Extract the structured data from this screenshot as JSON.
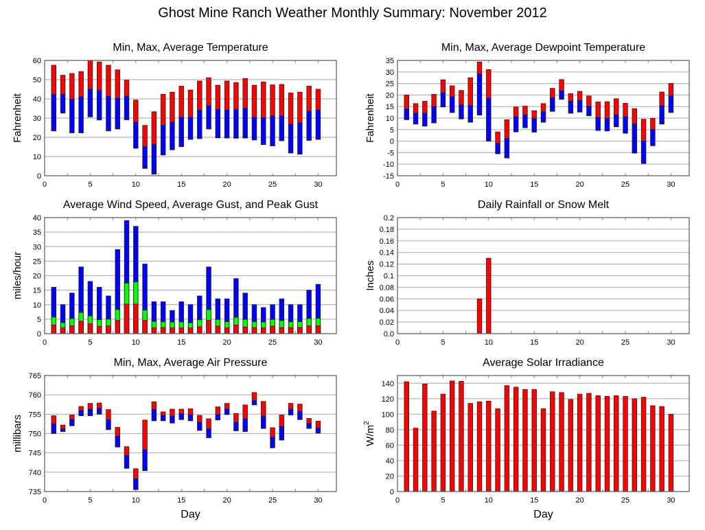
{
  "title": "Ghost Mine Ranch Weather Monthly Summary: November 2012",
  "colors": {
    "red": "#ff0000",
    "blue": "#0000ff",
    "green": "#00ff00",
    "grid": "#b4b4b4",
    "frame": "#555555"
  },
  "chart_data": [
    {
      "id": "temperature",
      "type": "bar",
      "subtype": "floating-range",
      "title": "Min, Max, Average Temperature",
      "xlabel": "",
      "ylabel": "Fahrenheit",
      "xlim": [
        0,
        32
      ],
      "ylim": [
        0,
        60
      ],
      "xticks": [
        0,
        5,
        10,
        15,
        20,
        25,
        30
      ],
      "yticks": [
        0,
        10,
        20,
        30,
        40,
        50,
        60
      ],
      "grid": true,
      "x": [
        1,
        2,
        3,
        4,
        5,
        6,
        7,
        8,
        9,
        10,
        11,
        12,
        13,
        14,
        15,
        16,
        17,
        18,
        19,
        20,
        21,
        22,
        23,
        24,
        25,
        26,
        27,
        28,
        29,
        30
      ],
      "series": [
        {
          "name": "Max",
          "color": "red",
          "values": [
            57.5,
            52.3,
            53.2,
            54.2,
            60,
            59.2,
            57.5,
            55.1,
            49.7,
            39.4,
            26.2,
            33.3,
            42.4,
            43.5,
            46.6,
            44.6,
            49.3,
            51,
            47.1,
            49.3,
            48.5,
            50.6,
            47.1,
            48.8,
            47.3,
            47.5,
            43.1,
            43.5,
            46.6,
            45
          ]
        },
        {
          "name": "Average",
          "color": "blue",
          "values": [
            42.3,
            42.3,
            39.7,
            41,
            45,
            44.3,
            41.3,
            40.3,
            41.3,
            27.8,
            15.1,
            16.2,
            26.2,
            27.8,
            30.4,
            30.4,
            34.1,
            36.4,
            34.5,
            34.1,
            34.5,
            35.1,
            30.4,
            30.2,
            31.1,
            31.1,
            26.7,
            27.5,
            33.5,
            34.1
          ]
        },
        {
          "name": "Min",
          "color": "blue",
          "values": [
            23.3,
            32.6,
            22.3,
            22.3,
            30.6,
            29,
            23.3,
            24.3,
            29.1,
            14.3,
            3.8,
            0.8,
            10.8,
            13.5,
            15.1,
            18.9,
            19.3,
            24.3,
            19.7,
            19.6,
            19.5,
            19.6,
            18.6,
            16.2,
            15.5,
            18.2,
            11.8,
            11.2,
            18.4,
            18.9
          ]
        }
      ]
    },
    {
      "id": "dewpoint",
      "type": "bar",
      "subtype": "floating-range",
      "title": "Min, Max, Average Dewpoint Temperature",
      "xlabel": "",
      "ylabel": "Fahrenheit",
      "xlim": [
        0,
        32
      ],
      "ylim": [
        -15,
        35
      ],
      "xticks": [
        0,
        5,
        10,
        15,
        20,
        25,
        30
      ],
      "yticks": [
        -15,
        -10,
        -5,
        0,
        5,
        10,
        15,
        20,
        25,
        30,
        35
      ],
      "grid": true,
      "x": [
        1,
        2,
        3,
        4,
        5,
        6,
        7,
        8,
        9,
        10,
        11,
        12,
        13,
        14,
        15,
        16,
        17,
        18,
        19,
        20,
        21,
        22,
        23,
        24,
        25,
        26,
        27,
        28,
        29,
        30
      ],
      "series": [
        {
          "name": "Max",
          "color": "red",
          "values": [
            20,
            16.3,
            17.3,
            20.3,
            26.6,
            24,
            22,
            27.5,
            34.3,
            31,
            4,
            9.3,
            14.8,
            15.2,
            13.2,
            16.3,
            22.9,
            26.7,
            20.6,
            21.6,
            19.6,
            17,
            17.1,
            18.4,
            16.4,
            14.1,
            9.5,
            9.9,
            21.3,
            25
          ]
        },
        {
          "name": "Average",
          "color": "blue",
          "values": [
            14,
            12.1,
            12.1,
            14.9,
            21,
            19.2,
            15.7,
            15.5,
            29.1,
            18.6,
            -1,
            1.1,
            10.6,
            11.3,
            9.8,
            12.7,
            18.8,
            21.8,
            17.3,
            17.6,
            15.1,
            10.3,
            9.8,
            11.4,
            10.5,
            7.4,
            0,
            5,
            15.4,
            19.6
          ]
        },
        {
          "name": "Min",
          "color": "blue",
          "values": [
            9.3,
            7.4,
            6.5,
            7.9,
            14.8,
            12.4,
            9.6,
            8.2,
            11.3,
            0,
            -5.5,
            -7.3,
            4,
            5.8,
            3.9,
            8.2,
            12.9,
            18.1,
            12.1,
            12.6,
            11,
            4.6,
            4.4,
            6.2,
            3.4,
            -5.2,
            -9.7,
            -2,
            7.4,
            12.4
          ]
        }
      ]
    },
    {
      "id": "wind",
      "type": "bar",
      "subtype": "stacked-overlay",
      "title": "Average Wind Speed, Average Gust, and Peak Gust",
      "xlabel": "",
      "ylabel": "miles/hour",
      "xlim": [
        0,
        32
      ],
      "ylim": [
        0,
        40
      ],
      "xticks": [
        0,
        5,
        10,
        15,
        20,
        25,
        30
      ],
      "yticks": [
        0,
        5,
        10,
        15,
        20,
        25,
        30,
        35,
        40
      ],
      "grid": true,
      "x": [
        1,
        2,
        3,
        4,
        5,
        6,
        7,
        8,
        9,
        10,
        11,
        12,
        13,
        14,
        15,
        16,
        17,
        18,
        19,
        20,
        21,
        22,
        23,
        24,
        25,
        26,
        27,
        28,
        29,
        30
      ],
      "series": [
        {
          "name": "Peak Gust",
          "color": "blue",
          "values": [
            16,
            10,
            14,
            23,
            18,
            16,
            13,
            29,
            39,
            37,
            24,
            11,
            11,
            8,
            11,
            10,
            13,
            23,
            12,
            12,
            19,
            14,
            10,
            9,
            10,
            12,
            10,
            10,
            15,
            17
          ]
        },
        {
          "name": "Average Gust",
          "color": "green",
          "values": [
            5.7,
            3.8,
            5.2,
            7.3,
            6.1,
            4.8,
            5,
            8.3,
            17.4,
            17.8,
            8.1,
            4.2,
            4.1,
            4,
            4,
            3.7,
            4.8,
            8.3,
            4.9,
            4.1,
            5.6,
            4.9,
            4.1,
            4,
            4.9,
            4.5,
            4.1,
            4.1,
            5.2,
            5.3
          ]
        },
        {
          "name": "Average Wind Speed",
          "color": "red",
          "values": [
            3,
            2,
            2.7,
            4.3,
            3.4,
            2.5,
            2.7,
            4.6,
            10.2,
            10.2,
            4.6,
            2,
            2.1,
            2,
            2,
            2,
            2.4,
            4.6,
            2.6,
            2,
            3,
            2.3,
            2.1,
            2,
            2.6,
            2.1,
            2.1,
            2.1,
            2.7,
            2.7
          ]
        }
      ]
    },
    {
      "id": "rainfall",
      "type": "bar",
      "title": "Daily Rainfall or Snow Melt",
      "xlabel": "",
      "ylabel": "Inches",
      "xlim": [
        0,
        32
      ],
      "ylim": [
        0,
        0.2
      ],
      "xticks": [
        0,
        5,
        10,
        15,
        20,
        25,
        30
      ],
      "yticks": [
        "0.0",
        "0.02",
        "0.04",
        "0.06",
        "0.08",
        "0.1",
        "0.12",
        "0.14",
        "0.16",
        "0.18",
        "0.2"
      ],
      "grid": true,
      "x": [
        9,
        10
      ],
      "values": [
        0.06,
        0.13
      ],
      "color": "red"
    },
    {
      "id": "pressure",
      "type": "bar",
      "subtype": "floating-range",
      "title": "Min, Max, Average Air Pressure",
      "xlabel": "Day",
      "ylabel": "millibars",
      "xlim": [
        0,
        32
      ],
      "ylim": [
        735,
        765
      ],
      "xticks": [
        0,
        5,
        10,
        15,
        20,
        25,
        30
      ],
      "yticks": [
        735,
        740,
        745,
        750,
        755,
        760,
        765
      ],
      "grid": true,
      "x": [
        1,
        2,
        3,
        4,
        5,
        6,
        7,
        8,
        9,
        10,
        11,
        12,
        13,
        14,
        15,
        16,
        17,
        18,
        19,
        20,
        21,
        22,
        23,
        24,
        25,
        26,
        27,
        28,
        29,
        30
      ],
      "series": [
        {
          "name": "Max",
          "color": "red",
          "values": [
            754.6,
            752.2,
            754.8,
            757,
            757.8,
            757.9,
            756.2,
            751.6,
            746.6,
            740.9,
            753.5,
            758.2,
            755.6,
            756.3,
            756.3,
            756.4,
            754.7,
            753.8,
            756.9,
            757.8,
            755.2,
            757.4,
            760.6,
            758.3,
            751.5,
            754.8,
            757.8,
            757.6,
            753.9,
            753.2
          ]
        },
        {
          "name": "Average",
          "color": "blue",
          "values": [
            752.5,
            751.2,
            753.6,
            755.9,
            756.3,
            756.5,
            753.5,
            749.3,
            744.3,
            738.3,
            745.8,
            756.2,
            754.7,
            754.5,
            755.1,
            754.8,
            752.9,
            751.2,
            754.9,
            756.3,
            752.9,
            753.8,
            758.5,
            754.5,
            749,
            751.8,
            756.3,
            755.7,
            752.6,
            751.4
          ]
        },
        {
          "name": "Min",
          "color": "blue",
          "values": [
            750,
            750.5,
            752,
            754.6,
            754.6,
            755,
            751,
            746.5,
            741,
            735.5,
            740.4,
            753.3,
            753.3,
            752.7,
            753.6,
            753.3,
            750.8,
            748.9,
            753.5,
            754.9,
            750.7,
            750.5,
            757.4,
            751.3,
            746.3,
            748.3,
            754.8,
            753.6,
            751.3,
            750.1
          ]
        }
      ]
    },
    {
      "id": "solar",
      "type": "bar",
      "title": "Average Solar Irradiance",
      "xlabel": "Day",
      "ylabel": "W/m^2",
      "xlim": [
        0,
        32
      ],
      "ylim": [
        0,
        150
      ],
      "xticks": [
        0,
        5,
        10,
        15,
        20,
        25,
        30
      ],
      "yticks": [
        0,
        20,
        40,
        60,
        80,
        100,
        120,
        140
      ],
      "grid": true,
      "x": [
        1,
        2,
        3,
        4,
        5,
        6,
        7,
        8,
        9,
        10,
        11,
        12,
        13,
        14,
        15,
        16,
        17,
        18,
        19,
        20,
        21,
        22,
        23,
        24,
        25,
        26,
        27,
        28,
        29,
        30
      ],
      "values": [
        142,
        82,
        139,
        104,
        126,
        143,
        142.5,
        114,
        116,
        117,
        107,
        137,
        135,
        132,
        132,
        107,
        129,
        128,
        119,
        126,
        127,
        124,
        123,
        124,
        123,
        120,
        122,
        111,
        110,
        100
      ],
      "color": "red"
    }
  ]
}
